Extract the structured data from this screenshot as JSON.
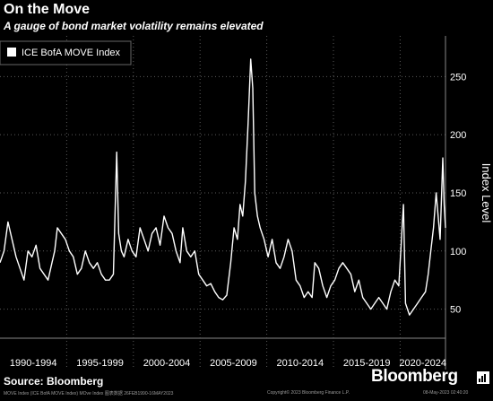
{
  "header": {
    "title": "On the Move",
    "subtitle": "A gauge of bond market volatility remains elevated"
  },
  "footer": {
    "source": "Source: Bloomberg",
    "brand": "Bloomberg",
    "left_note": "MOVE Index (ICE BofA MOVE Index) MOve Index 图表数据 26FEB1990-16MAY2023",
    "mid_note": "Copyright© 2023 Bloomberg Finance L.P.",
    "right_note": "08-May-2023 02:40:20"
  },
  "colors": {
    "background": "#000000",
    "line": "#ffffff",
    "grid": "#5a5a5a",
    "text": "#ffffff"
  },
  "chart_data": {
    "type": "line",
    "ylabel": "Index Level",
    "ylim": [
      25,
      285
    ],
    "yticks": [
      50,
      100,
      150,
      200,
      250
    ],
    "xlim": [
      1990,
      2023.4
    ],
    "x_groups": [
      {
        "label": "1990-1994",
        "start": 1990,
        "end": 1995
      },
      {
        "label": "1995-1999",
        "start": 1995,
        "end": 2000
      },
      {
        "label": "2000-2004",
        "start": 2000,
        "end": 2005
      },
      {
        "label": "2005-2009",
        "start": 2005,
        "end": 2010
      },
      {
        "label": "2010-2014",
        "start": 2010,
        "end": 2015
      },
      {
        "label": "2015-2019",
        "start": 2015,
        "end": 2020
      },
      {
        "label": "2020-2024",
        "start": 2020,
        "end": 2025
      }
    ],
    "grid": true,
    "legend_position": "top-left",
    "series": [
      {
        "name": "ICE BofA MOVE Index",
        "x": [
          1990.0,
          1990.3,
          1990.6,
          1990.9,
          1991.2,
          1991.5,
          1991.8,
          1992.1,
          1992.4,
          1992.7,
          1993.0,
          1993.3,
          1993.6,
          1993.9,
          1994.1,
          1994.3,
          1994.6,
          1994.9,
          1995.2,
          1995.5,
          1995.8,
          1996.1,
          1996.4,
          1996.7,
          1997.0,
          1997.3,
          1997.6,
          1997.9,
          1998.2,
          1998.5,
          1998.75,
          1998.9,
          1999.1,
          1999.3,
          1999.6,
          1999.9,
          2000.2,
          2000.5,
          2000.8,
          2001.1,
          2001.4,
          2001.7,
          2002.0,
          2002.3,
          2002.6,
          2002.9,
          2003.2,
          2003.5,
          2003.7,
          2004.0,
          2004.3,
          2004.6,
          2004.9,
          2005.2,
          2005.5,
          2005.8,
          2006.1,
          2006.4,
          2006.7,
          2007.0,
          2007.3,
          2007.55,
          2007.8,
          2008.0,
          2008.2,
          2008.4,
          2008.6,
          2008.8,
          2008.95,
          2009.1,
          2009.3,
          2009.5,
          2009.8,
          2010.1,
          2010.4,
          2010.7,
          2011.0,
          2011.3,
          2011.6,
          2011.9,
          2012.2,
          2012.5,
          2012.8,
          2013.1,
          2013.4,
          2013.6,
          2013.9,
          2014.2,
          2014.5,
          2014.8,
          2015.1,
          2015.4,
          2015.7,
          2016.0,
          2016.3,
          2016.6,
          2016.9,
          2017.2,
          2017.5,
          2017.8,
          2018.1,
          2018.4,
          2018.7,
          2019.0,
          2019.3,
          2019.6,
          2019.9,
          2020.15,
          2020.25,
          2020.4,
          2020.7,
          2021.0,
          2021.3,
          2021.6,
          2021.9,
          2022.1,
          2022.3,
          2022.5,
          2022.7,
          2022.85,
          2023.0,
          2023.2,
          2023.3,
          2023.4
        ],
        "y": [
          90,
          100,
          125,
          110,
          95,
          85,
          75,
          100,
          95,
          105,
          85,
          80,
          75,
          90,
          100,
          120,
          115,
          110,
          100,
          95,
          80,
          85,
          100,
          90,
          85,
          90,
          80,
          75,
          75,
          80,
          185,
          115,
          100,
          95,
          110,
          100,
          95,
          120,
          110,
          100,
          115,
          120,
          105,
          130,
          120,
          115,
          100,
          90,
          120,
          100,
          95,
          100,
          80,
          75,
          70,
          72,
          65,
          60,
          58,
          62,
          90,
          120,
          110,
          140,
          130,
          160,
          210,
          265,
          240,
          150,
          130,
          120,
          110,
          95,
          110,
          90,
          85,
          95,
          110,
          100,
          75,
          70,
          60,
          65,
          60,
          90,
          85,
          70,
          60,
          70,
          75,
          85,
          90,
          85,
          80,
          65,
          75,
          60,
          55,
          50,
          55,
          60,
          55,
          50,
          65,
          75,
          70,
          120,
          140,
          55,
          45,
          50,
          55,
          60,
          65,
          80,
          100,
          120,
          150,
          130,
          110,
          180,
          140,
          120
        ]
      }
    ]
  }
}
